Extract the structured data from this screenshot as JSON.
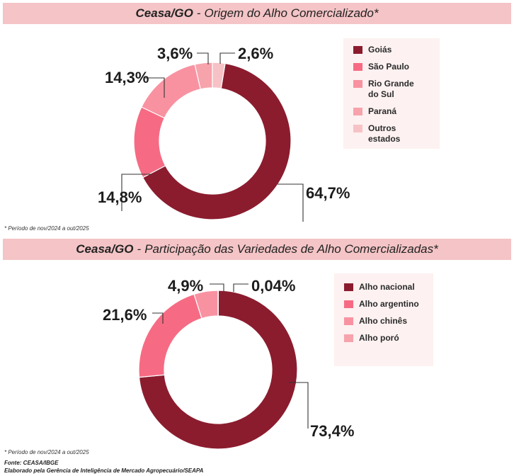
{
  "chart_data": [
    {
      "type": "pie",
      "title": "Ceasa/GO",
      "subtitle": "Origem do Alho Comercializado*",
      "categories": [
        "Goiás",
        "São Paulo",
        "Rio Grande\ndo Sul",
        "Paraná",
        "Outros estados"
      ],
      "values": [
        64.7,
        14.8,
        14.3,
        3.6,
        2.6
      ],
      "labels": [
        "64,7%",
        "14,8%",
        "14,3%",
        "3,6%",
        "2,6%"
      ],
      "colors": [
        "#8b1c2e",
        "#f66b83",
        "#f892a1",
        "#f7a3ac",
        "#f6c2c6"
      ],
      "legend": "right",
      "note": "* Período de nov/2024 a out/2025"
    },
    {
      "type": "pie",
      "title": "Ceasa/GO",
      "subtitle": "Participação das Variedades de Alho Comercializadas*",
      "categories": [
        "Alho nacional",
        "Alho argentino",
        "Alho chinês",
        "Alho poró"
      ],
      "values": [
        73.4,
        21.6,
        4.9,
        0.04
      ],
      "labels": [
        "73,4%",
        "21,6%",
        "4,9%",
        "0,04%"
      ],
      "colors": [
        "#8b1c2e",
        "#f66b83",
        "#f892a1",
        "#f7a3ac"
      ],
      "legend": "right",
      "note": "* Período de nov/2024 a out/2025"
    }
  ],
  "footer": {
    "source": "Fonte: CEASA/IBGE",
    "credit": "Elaborado pela Gerência de Inteligência de Mercado Agropecuário/SEAPA"
  }
}
